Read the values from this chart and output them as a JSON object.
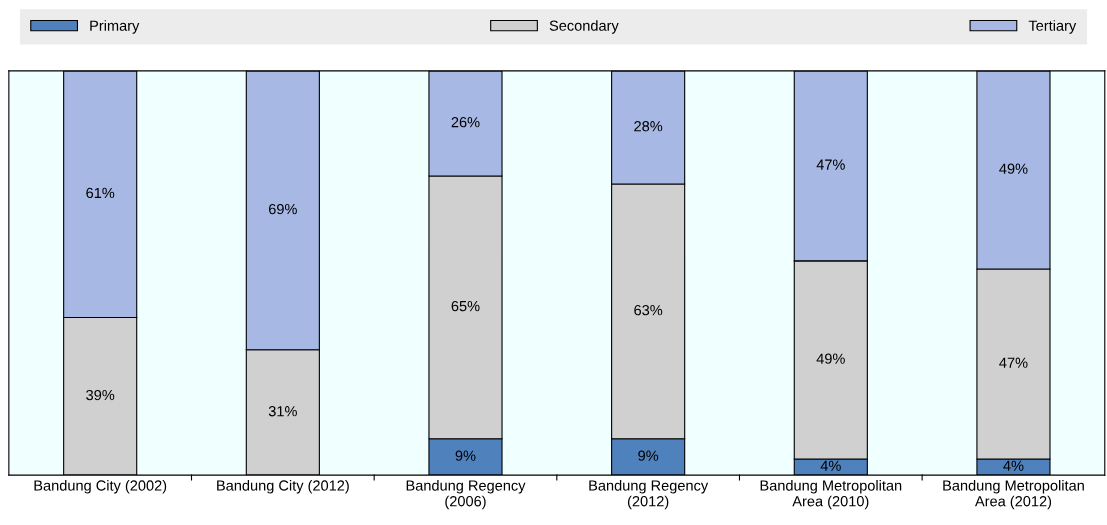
{
  "chart_data": {
    "type": "bar",
    "stacked": true,
    "legend": "top",
    "categories": [
      "Bandung City (2002)",
      "Bandung City (2012)",
      "Bandung Regency\n(2006)",
      "Bandung Regency\n(2012)",
      "Bandung Metropolitan\nArea (2010)",
      "Bandung Metropolitan\nArea (2012)"
    ],
    "series": [
      {
        "name": "Primary",
        "color": "#4f81bd",
        "values": [
          0,
          0,
          9,
          9,
          4,
          4
        ],
        "value_labels": [
          null,
          null,
          "9%",
          "9%",
          "4%",
          "4%"
        ]
      },
      {
        "name": "Secondary",
        "color": "#d0d0d0",
        "values": [
          39,
          31,
          65,
          63,
          49,
          47
        ],
        "value_labels": [
          "39%",
          "31%",
          "65%",
          "63%",
          "49%",
          "47%"
        ]
      },
      {
        "name": "Tertiary",
        "color": "#a6b8e3",
        "values": [
          61,
          69,
          26,
          28,
          47,
          49
        ],
        "value_labels": [
          "61%",
          "69%",
          "26%",
          "28%",
          "47%",
          "49%"
        ]
      }
    ]
  }
}
